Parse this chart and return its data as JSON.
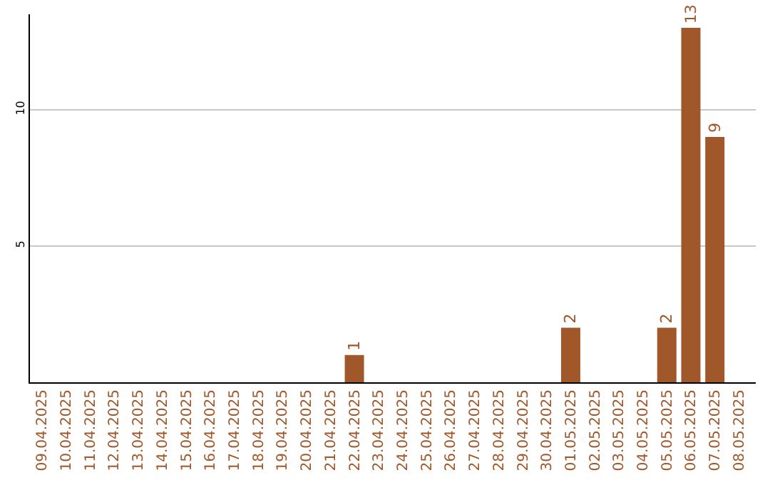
{
  "chart_data": {
    "type": "bar",
    "categories": [
      "09.04.2025",
      "10.04.2025",
      "11.04.2025",
      "12.04.2025",
      "13.04.2025",
      "14.04.2025",
      "15.04.2025",
      "16.04.2025",
      "17.04.2025",
      "18.04.2025",
      "19.04.2025",
      "20.04.2025",
      "21.04.2025",
      "22.04.2025",
      "23.04.2025",
      "24.04.2025",
      "25.04.2025",
      "26.04.2025",
      "27.04.2025",
      "28.04.2025",
      "29.04.2025",
      "30.04.2025",
      "01.05.2025",
      "02.05.2025",
      "03.05.2025",
      "04.05.2025",
      "05.05.2025",
      "06.05.2025",
      "07.05.2025",
      "08.05.2025"
    ],
    "values": [
      0,
      0,
      0,
      0,
      0,
      0,
      0,
      0,
      0,
      0,
      0,
      0,
      0,
      1,
      0,
      0,
      0,
      0,
      0,
      0,
      0,
      0,
      2,
      0,
      0,
      0,
      2,
      13,
      9,
      0
    ],
    "value_labels": [
      null,
      null,
      null,
      null,
      null,
      null,
      null,
      null,
      null,
      null,
      null,
      null,
      null,
      "1",
      null,
      null,
      null,
      null,
      null,
      null,
      null,
      null,
      "2",
      null,
      null,
      null,
      "2",
      "13",
      "9",
      null
    ],
    "color": "#a0572a",
    "ylim": [
      0,
      13.5
    ],
    "yticks": [
      5,
      10
    ],
    "grid": "y"
  }
}
